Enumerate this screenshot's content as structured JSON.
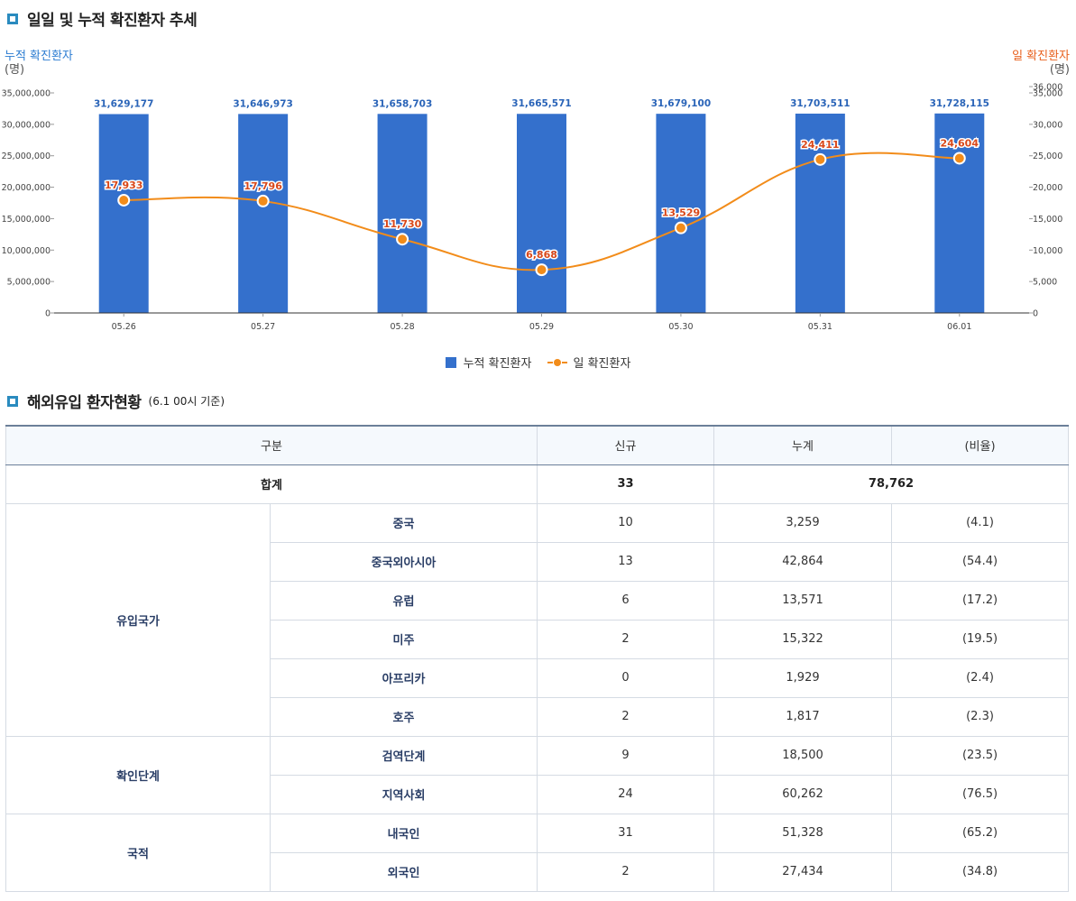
{
  "section1": {
    "title": "일일 및 누적 확진환자 추세"
  },
  "section2": {
    "title": "해외유입 환자현황",
    "subtitle": "(6.1 00시 기준)"
  },
  "chart_data": {
    "type": "bar",
    "categories": [
      "05.26",
      "05.27",
      "05.28",
      "05.29",
      "05.30",
      "05.31",
      "06.01"
    ],
    "series": [
      {
        "name": "누적 확진환자",
        "type": "bar",
        "axis": "left",
        "color": "#3470cc",
        "values": [
          31629177,
          31646973,
          31658703,
          31665571,
          31679100,
          31703511,
          31728115
        ],
        "labels": [
          "31,629,177",
          "31,646,973",
          "31,658,703",
          "31,665,571",
          "31,679,100",
          "31,703,511",
          "31,728,115"
        ]
      },
      {
        "name": "일 확진환자",
        "type": "line",
        "axis": "right",
        "color": "#f28c1a",
        "values": [
          17933,
          17796,
          11730,
          6868,
          13529,
          24411,
          24604
        ],
        "labels": [
          "17,933",
          "17,796",
          "11,730",
          "6,868",
          "13,529",
          "24,411",
          "24,604"
        ]
      }
    ],
    "left_axis": {
      "label": "누적 확진환자",
      "unit": "(명)",
      "ylim": [
        0,
        35000000
      ],
      "ticks": [
        0,
        5000000,
        10000000,
        15000000,
        20000000,
        25000000,
        30000000,
        35000000
      ],
      "tick_labels": [
        "0",
        "5,000,000",
        "10,000,000",
        "15,000,000",
        "20,000,000",
        "25,000,000",
        "30,000,000",
        "35,000,000"
      ]
    },
    "right_axis": {
      "label": "일 확진환자",
      "unit": "(명)",
      "ylim": [
        0,
        35000
      ],
      "ticks": [
        0,
        5000,
        10000,
        15000,
        20000,
        25000,
        30000,
        35000,
        36000
      ],
      "tick_labels": [
        "0",
        "5,000",
        "10,000",
        "15,000",
        "20,000",
        "25,000",
        "30,000",
        "35,000",
        "36,000"
      ]
    },
    "legend": {
      "position": "bottom",
      "entries": [
        "누적 확진환자",
        "일 확진환자"
      ]
    },
    "grid": false
  },
  "table": {
    "headers": [
      "구분",
      "신규",
      "누계",
      "(비율)"
    ],
    "total": {
      "label": "합계",
      "new": "33",
      "cumulative": "78,762"
    },
    "groups": [
      {
        "label": "유입국가",
        "rows": [
          {
            "label": "중국",
            "new": "10",
            "cumulative": "3,259",
            "ratio": "(4.1)"
          },
          {
            "label": "중국외아시아",
            "new": "13",
            "cumulative": "42,864",
            "ratio": "(54.4)"
          },
          {
            "label": "유럽",
            "new": "6",
            "cumulative": "13,571",
            "ratio": "(17.2)"
          },
          {
            "label": "미주",
            "new": "2",
            "cumulative": "15,322",
            "ratio": "(19.5)"
          },
          {
            "label": "아프리카",
            "new": "0",
            "cumulative": "1,929",
            "ratio": "(2.4)"
          },
          {
            "label": "호주",
            "new": "2",
            "cumulative": "1,817",
            "ratio": "(2.3)"
          }
        ]
      },
      {
        "label": "확인단계",
        "rows": [
          {
            "label": "검역단계",
            "new": "9",
            "cumulative": "18,500",
            "ratio": "(23.5)"
          },
          {
            "label": "지역사회",
            "new": "24",
            "cumulative": "60,262",
            "ratio": "(76.5)"
          }
        ]
      },
      {
        "label": "국적",
        "rows": [
          {
            "label": "내국인",
            "new": "31",
            "cumulative": "51,328",
            "ratio": "(65.2)"
          },
          {
            "label": "외국인",
            "new": "2",
            "cumulative": "27,434",
            "ratio": "(34.8)"
          }
        ]
      }
    ]
  }
}
